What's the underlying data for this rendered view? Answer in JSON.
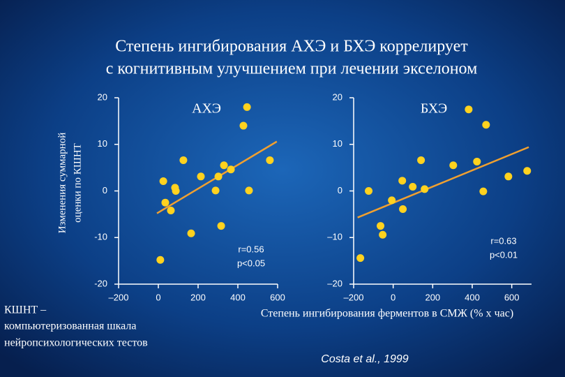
{
  "title": [
    "Степень ингибирования АХЭ и БХЭ коррелирует",
    "с когнитивным улучшением при лечении экселоном"
  ],
  "y_label": [
    "Изменения суммарной",
    "оценки по КШНТ"
  ],
  "x_label": "Степень ингибирования ферментов в СМЖ (% х час)",
  "footnote": [
    "КШНТ –",
    "компьютеризованная шкала",
    "нейропсихологических тестов"
  ],
  "citation": "Costa et al., 1999",
  "chart_data": [
    {
      "type": "scatter",
      "title": "АХЭ",
      "color": "#ffd21f",
      "trend_color": "#f0a030",
      "x": [
        10,
        25,
        35,
        63,
        84,
        88,
        126,
        165,
        214,
        288,
        302,
        316,
        330,
        365,
        428,
        446,
        456,
        561
      ],
      "values": [
        -14.8,
        2.1,
        -2.5,
        -4.2,
        0.7,
        0,
        6.6,
        -9.1,
        3.1,
        0.1,
        3.1,
        -7.5,
        5.5,
        4.6,
        14,
        18,
        0.1,
        6.6
      ],
      "trend": {
        "x": [
          -7,
          596
        ],
        "y": [
          -4.8,
          10.6
        ]
      },
      "annotation": [
        "r=0.56",
        "p<0.05"
      ],
      "xlim": [
        -200,
        600
      ],
      "ylim": [
        -20,
        20
      ],
      "xticks": [
        {
          "value": -200,
          "label": "–200"
        },
        0,
        200,
        400,
        600
      ],
      "yticks": [
        -20,
        -10,
        0,
        10,
        20
      ]
    },
    {
      "type": "scatter",
      "title": "БХЭ",
      "color": "#ffd21f",
      "trend_color": "#f0a030",
      "x": [
        -166,
        -124,
        -64,
        -53,
        -7,
        46,
        49,
        99,
        141,
        159,
        304,
        382,
        424,
        470,
        456,
        583,
        678
      ],
      "values": [
        -14.4,
        0,
        -7.5,
        -9.4,
        -2,
        2.2,
        -3.9,
        0.9,
        6.6,
        0.4,
        5.5,
        17.5,
        6.3,
        14.2,
        -0.1,
        3.1,
        4.3
      ],
      "trend": {
        "x": [
          -180,
          686
        ],
        "y": [
          -5.7,
          9.4
        ]
      },
      "annotation": [
        "r=0.63",
        "p<0.01"
      ],
      "xlim": [
        -200,
        700
      ],
      "ylim": [
        -20,
        20
      ],
      "xticks": [
        {
          "value": -200,
          "label": "–200"
        },
        0,
        200,
        400,
        600
      ],
      "yticks": [
        {
          "value": -20,
          "label": "–20"
        },
        {
          "value": -10,
          "label": "–10"
        },
        0,
        10,
        20
      ]
    }
  ]
}
